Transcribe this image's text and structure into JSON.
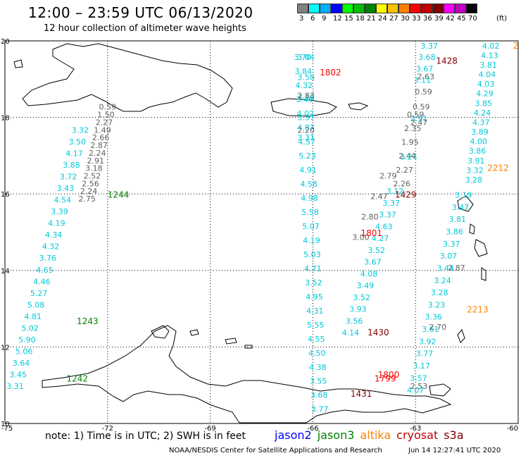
{
  "header": {
    "title": "12:00 – 23:59 UTC 06/13/2020",
    "subtitle": "12 hour collection of altimeter wave heights"
  },
  "colorbar": {
    "labels": [
      "3",
      "6",
      "9",
      "12",
      "15",
      "18",
      "21",
      "24",
      "27",
      "30",
      "33",
      "36",
      "39",
      "42",
      "45",
      "70"
    ],
    "unit": "(ft)",
    "colors": [
      "#808080",
      "#00ffff",
      "#00b0ff",
      "#0000ff",
      "#00ff00",
      "#00c000",
      "#008000",
      "#ffff00",
      "#ffc000",
      "#ff8000",
      "#ff0000",
      "#c00000",
      "#800000",
      "#ff00ff",
      "#c000c0",
      "#000000"
    ]
  },
  "axes": {
    "lon_labels": [
      "-75",
      "-72",
      "-69",
      "-66",
      "-63",
      "-60"
    ],
    "lat_labels": [
      "20",
      "18",
      "16",
      "14",
      "12",
      "10"
    ]
  },
  "footer": {
    "note": "note: 1) Time is in UTC; 2) SWH is in feet",
    "credit": "NOAA/NESDIS Center for Satellite Applications and Research",
    "timestamp": "Jun 14 12:27:41 UTC 2020"
  },
  "satellites": [
    {
      "name": "jason2",
      "color": "#0000ff"
    },
    {
      "name": "jason3",
      "color": "#008000"
    },
    {
      "name": "altika",
      "color": "#ff8000"
    },
    {
      "name": "cryosat",
      "color": "#c00000"
    },
    {
      "name": "s3a",
      "color": "#800000"
    }
  ],
  "passes": [
    {
      "id": "p1",
      "color": "#00c8d8",
      "start": [
        -74.7,
        10.9
      ],
      "end": [
        -72.8,
        17.6
      ],
      "values": [
        "3.31",
        "3.45",
        "3.64",
        "5.06",
        "5.90",
        "5.02",
        "4.81",
        "5.08",
        "5.27",
        "4.46",
        "4.65",
        "3.76",
        "4.32",
        "4.34",
        "4.19",
        "3.39",
        "4.54",
        "3.43",
        "3.72",
        "3.88",
        "4.17",
        "3.50",
        "3.32"
      ]
    },
    {
      "id": "p2",
      "color": "#606060",
      "start": [
        -72.6,
        15.8
      ],
      "end": [
        -72.0,
        18.2
      ],
      "values": [
        "2.75",
        "2.24",
        "2.56",
        "2.52",
        "3.18",
        "2.91",
        "2.24",
        "2.87",
        "2.66",
        "1.49",
        "2.27",
        "1.50",
        "0.59"
      ]
    },
    {
      "id": "p3",
      "color": "#00c8d8",
      "start": [
        -65.8,
        10.3
      ],
      "end": [
        -66.3,
        19.5
      ],
      "values": [
        "3.77",
        "3.68",
        "3.55",
        "4.38",
        "4.50",
        "4.55",
        "5.55",
        "4.31",
        "4.95",
        "3.52",
        "4.71",
        "5.03",
        "4.19",
        "5.07",
        "5.58",
        "4.98",
        "4.58",
        "4.91",
        "5.23",
        "4.57",
        "4.87",
        "4.02",
        "3.49",
        "4.32",
        "3.84",
        "3.70"
      ]
    },
    {
      "id": "p4",
      "color": "#00c8d8",
      "start": [
        -66.2,
        17.4
      ],
      "end": [
        -66.2,
        19.5
      ],
      "values": [
        "3.31",
        "3.57",
        "3.18",
        "3.58",
        "3.04"
      ]
    },
    {
      "id": "p5",
      "color": "#606060",
      "start": [
        -66.2,
        17.6
      ],
      "end": [
        -66.2,
        18.5
      ],
      "values": [
        "2.20",
        "2.83"
      ]
    },
    {
      "id": "p6",
      "color": "#00c8d8",
      "start": [
        -64.9,
        12.3
      ],
      "end": [
        -63.6,
        16.0
      ],
      "values": [
        "4.14",
        "3.56",
        "3.93",
        "3.52",
        "3.49",
        "4.08",
        "3.67",
        "3.52",
        "4.27",
        "4.63",
        "3.37",
        "3.37",
        "3.12"
      ]
    },
    {
      "id": "p7",
      "color": "#606060",
      "start": [
        -64.6,
        14.8
      ],
      "end": [
        -63.8,
        16.4
      ],
      "values": [
        "3.00",
        "2.80",
        "2.47",
        "2.79"
      ]
    },
    {
      "id": "p8",
      "color": "#606060",
      "start": [
        -63.4,
        16.2
      ],
      "end": [
        -63.0,
        18.0
      ],
      "values": [
        "2.26",
        "2.27",
        "2.44",
        "1.95",
        "2.35",
        "0.59"
      ]
    },
    {
      "id": "p9",
      "color": "#00c8d8",
      "start": [
        -63.2,
        16.9
      ],
      "end": [
        -62.9,
        17.9
      ],
      "values": [
        "3.24",
        "3.91"
      ]
    },
    {
      "id": "p10",
      "color": "#606060",
      "start": [
        -62.9,
        17.8
      ],
      "end": [
        -62.7,
        19.0
      ],
      "values": [
        "2.47",
        "0.59",
        "0.59",
        "2.63"
      ]
    },
    {
      "id": "p11",
      "color": "#00c8d8",
      "start": [
        -62.8,
        18.9
      ],
      "end": [
        -62.6,
        19.8
      ],
      "values": [
        "3.11",
        "3.67",
        "3.68",
        "3.37"
      ]
    },
    {
      "id": "p12",
      "color": "#00c8d8",
      "start": [
        -63.0,
        10.8
      ],
      "end": [
        -61.6,
        15.9
      ],
      "values": [
        "4.07",
        "3.57",
        "3.17",
        "3.77",
        "3.92",
        "3.61",
        "3.36",
        "3.23",
        "3.28",
        "3.24",
        "3.44",
        "3.07",
        "3.37",
        "3.86",
        "3.81",
        "3.47",
        "3.19"
      ]
    },
    {
      "id": "p13",
      "color": "#606060",
      "start": [
        -62.9,
        10.9
      ],
      "end": [
        -61.8,
        14.0
      ],
      "values": [
        "2.53",
        "2.70",
        "2.87"
      ]
    },
    {
      "id": "p14",
      "color": "#00c8d8",
      "start": [
        -61.3,
        16.3
      ],
      "end": [
        -60.8,
        19.8
      ],
      "values": [
        "3.28",
        "3.32",
        "3.91",
        "3.86",
        "4.00",
        "3.89",
        "4.37",
        "4.24",
        "3.85",
        "4.29",
        "4.03",
        "4.04",
        "3.81",
        "4.13",
        "4.02"
      ]
    }
  ],
  "times": [
    {
      "text": "1242",
      "color": "#008000",
      "lon": -73.2,
      "lat": 11.1
    },
    {
      "text": "1243",
      "color": "#008000",
      "lon": -72.9,
      "lat": 12.6
    },
    {
      "text": "1244",
      "color": "#008000",
      "lon": -72.0,
      "lat": 15.9
    },
    {
      "text": "1802",
      "color": "#ff0000",
      "lon": -65.8,
      "lat": 19.1
    },
    {
      "text": "1428",
      "color": "#800000",
      "lon": -62.4,
      "lat": 19.4
    },
    {
      "text": "1429",
      "color": "#800000",
      "lon": -63.6,
      "lat": 15.9
    },
    {
      "text": "1801",
      "color": "#ff0000",
      "lon": -64.6,
      "lat": 14.9
    },
    {
      "text": "1430",
      "color": "#800000",
      "lon": -64.4,
      "lat": 12.3
    },
    {
      "text": "1800",
      "color": "#ff0000",
      "lon": -64.1,
      "lat": 11.2
    },
    {
      "text": "1799",
      "color": "#ff0000",
      "lon": -64.2,
      "lat": 11.1
    },
    {
      "text": "1431",
      "color": "#800000",
      "lon": -64.9,
      "lat": 10.7
    },
    {
      "text": "2212",
      "color": "#ff8000",
      "lon": -60.9,
      "lat": 16.6
    },
    {
      "text": "2213",
      "color": "#ff8000",
      "lon": -61.5,
      "lat": 12.9
    },
    {
      "text": "2",
      "color": "#ff8000",
      "lon": -60.15,
      "lat": 19.8
    }
  ]
}
